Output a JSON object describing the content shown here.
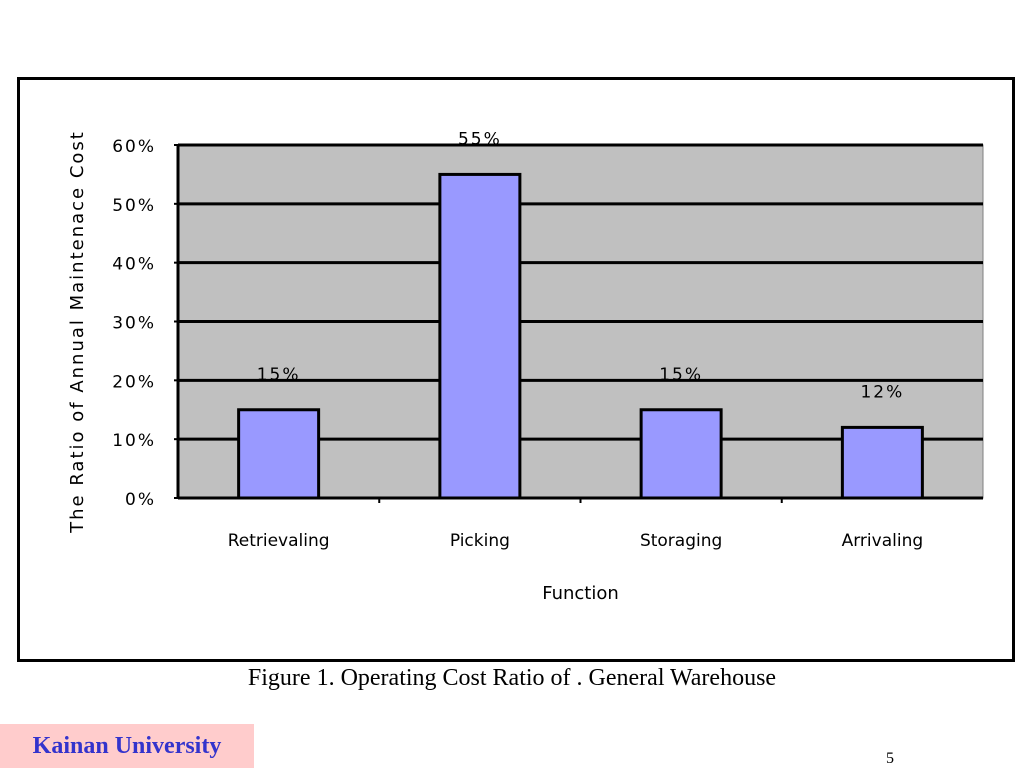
{
  "caption": "Figure 1. Operating Cost Ratio of . General Warehouse",
  "footer": {
    "university": "Kainan University",
    "page_number": "5"
  },
  "colors": {
    "bar": "#9999ff",
    "plot_bg": "#c0c0c0",
    "university_bg": "#ffcccc",
    "university_text": "#3333cc"
  },
  "chart_data": {
    "type": "bar",
    "categories": [
      "Retrievaling",
      "Picking",
      "Storaging",
      "Arrivaling"
    ],
    "values": [
      15,
      55,
      15,
      12
    ],
    "data_labels": [
      "15%",
      "55%",
      "15%",
      "12%"
    ],
    "xlabel": "Function",
    "ylabel": "The Ratio of Annual Maintenace Cost",
    "ylim": [
      0,
      60
    ],
    "yticks": [
      0,
      10,
      20,
      30,
      40,
      50,
      60
    ],
    "ytick_labels": [
      "0%",
      "10%",
      "20%",
      "30%",
      "40%",
      "50%",
      "60%"
    ],
    "grid": true,
    "legend": false
  }
}
